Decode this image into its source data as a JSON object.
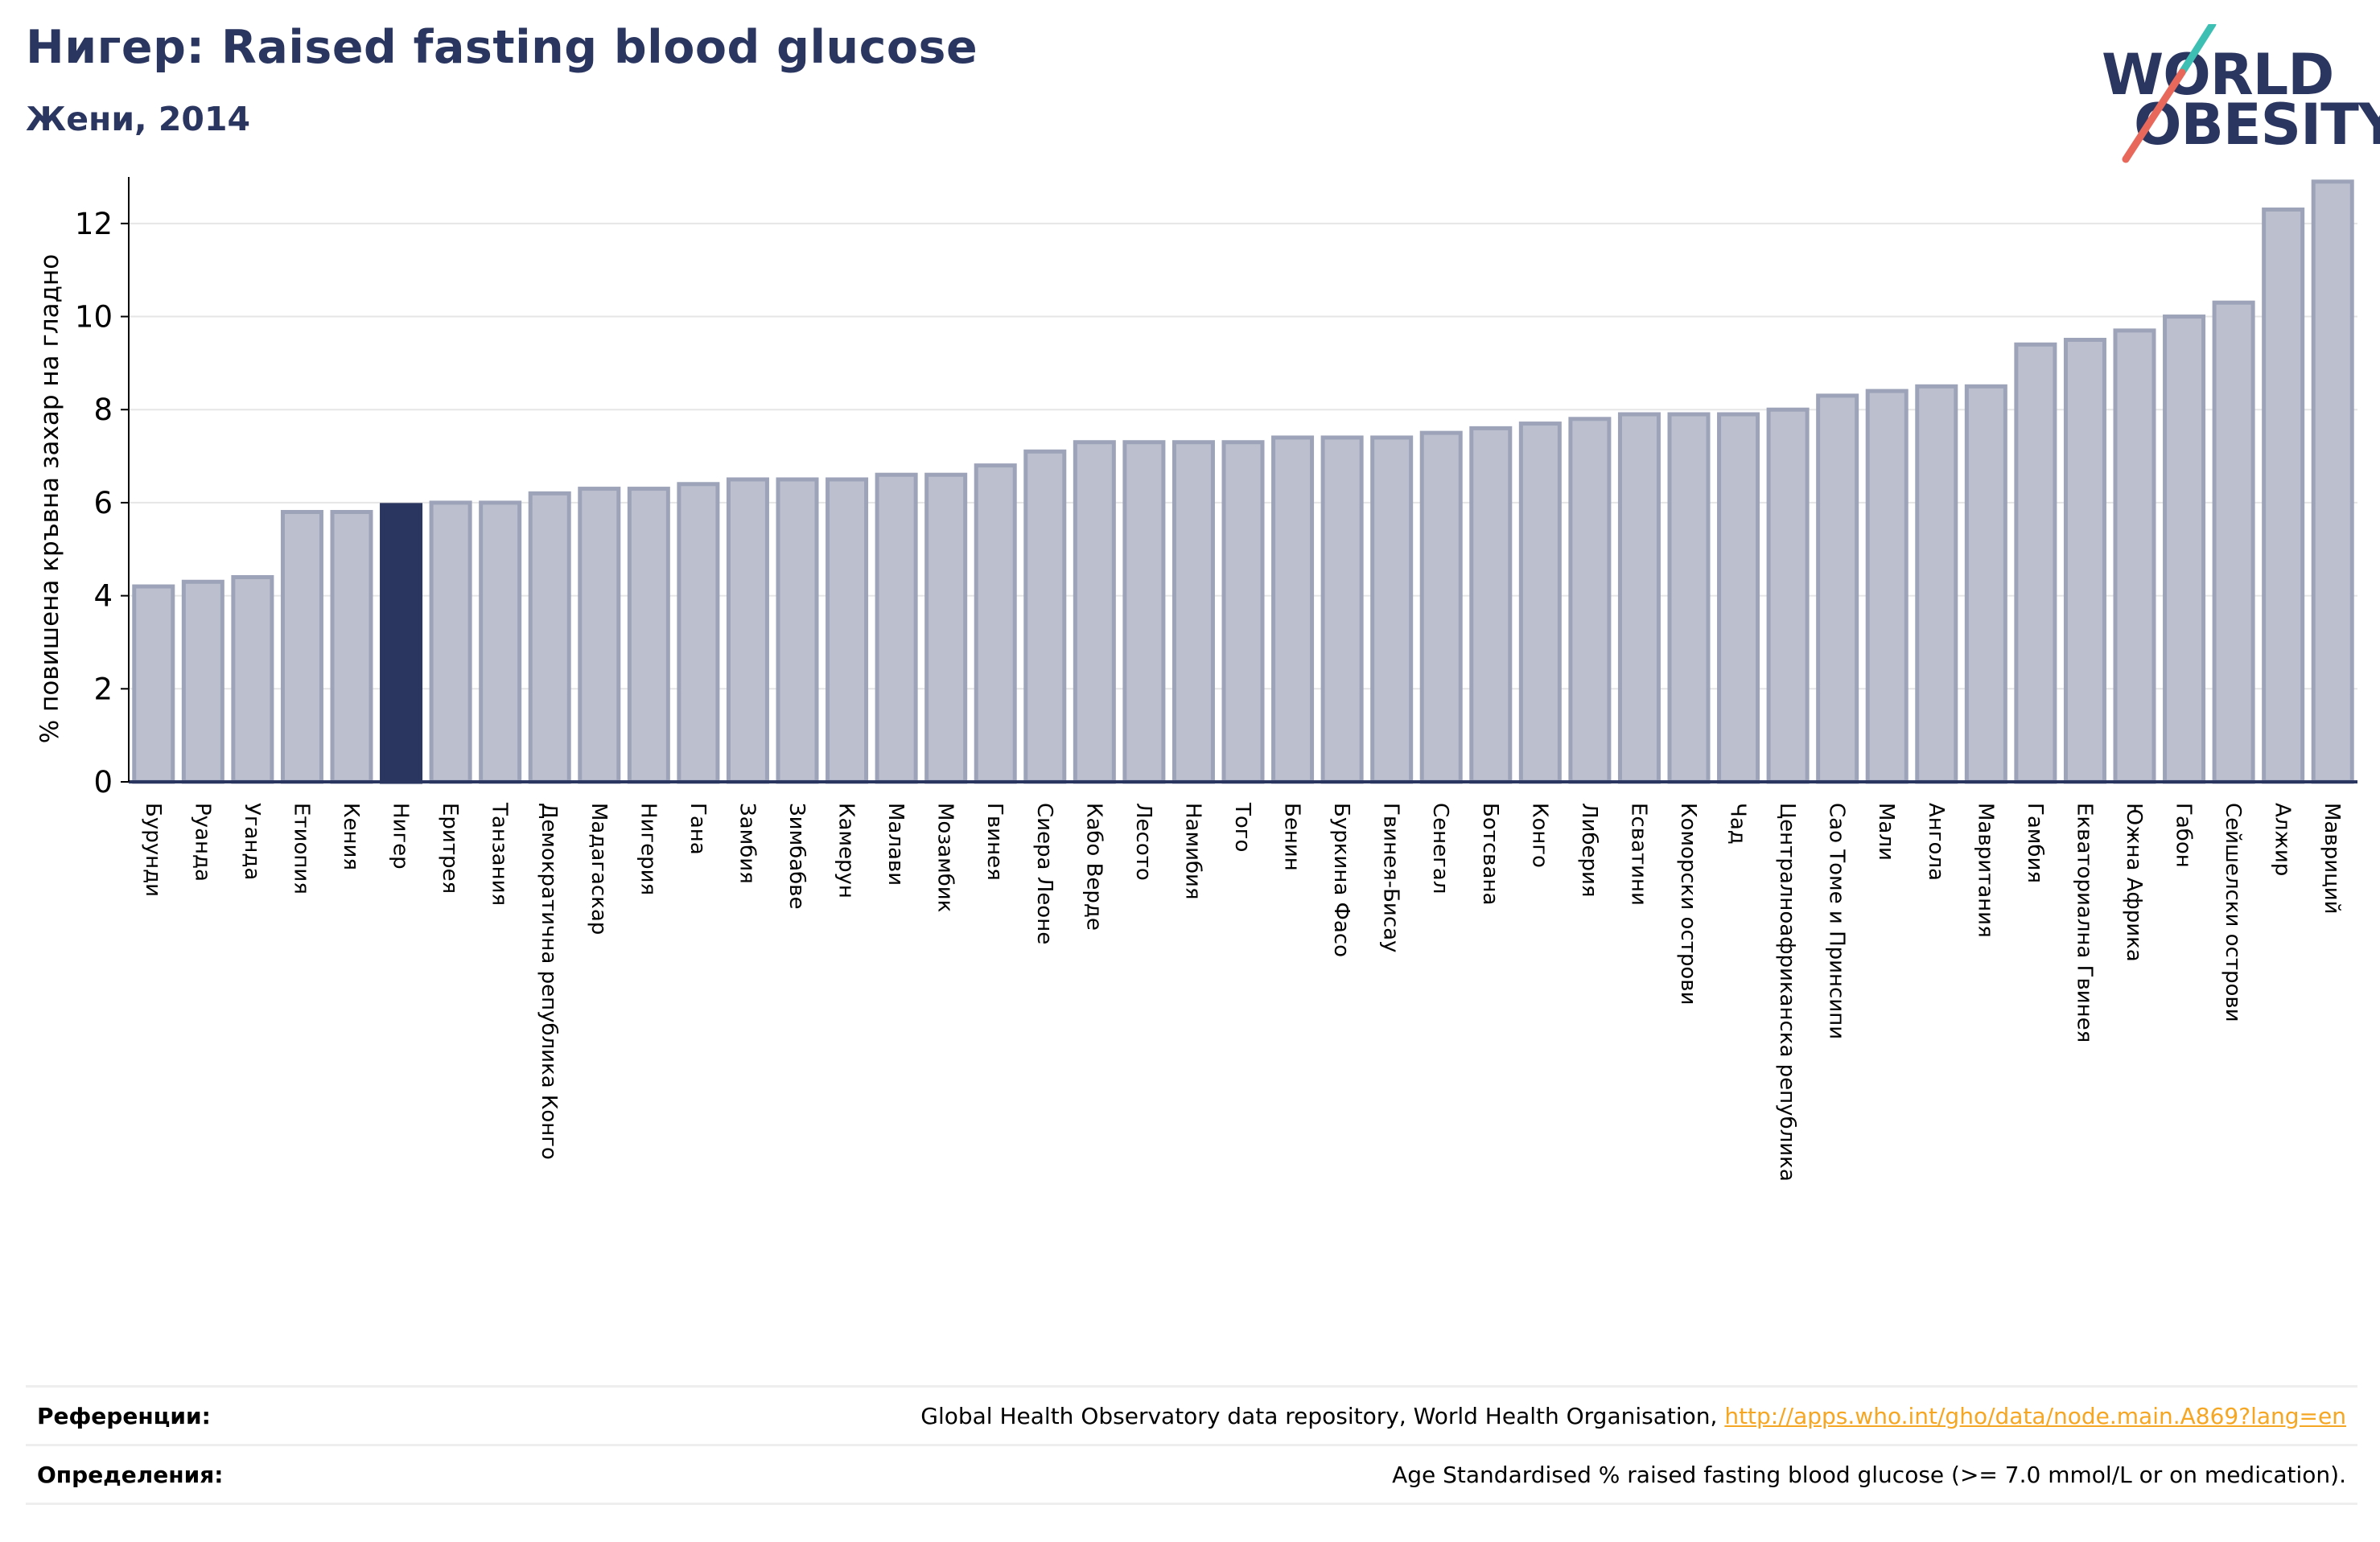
{
  "header": {
    "title": "Нигер: Raised fasting blood glucose",
    "subtitle": "Жени, 2014"
  },
  "logo": {
    "line1": "WORLD",
    "line2": "OBESITY"
  },
  "colors": {
    "bar": "#bcc0ce",
    "bar_border": "#9da3b8",
    "highlight": "#2a3560",
    "grid": "#e6e6e6",
    "title": "#2a3560",
    "logo_teal": "#3dbfb4",
    "logo_coral": "#e8695b",
    "link": "#f5a623"
  },
  "chart_data": {
    "type": "bar",
    "title": "",
    "xlabel": "",
    "ylabel": "% повишена кръвна захар на гладно",
    "ylim": [
      0,
      13
    ],
    "yticks": [
      0,
      2,
      4,
      6,
      8,
      10,
      12
    ],
    "grid": true,
    "highlight": "Нигер",
    "categories": [
      "Бурунди",
      "Руанда",
      "Уганда",
      "Етиопия",
      "Кения",
      "Нигер",
      "Еритрея",
      "Танзания",
      "Демократична република Конго",
      "Мадагаскар",
      "Нигерия",
      "Гана",
      "Замбия",
      "Зимбабве",
      "Камерун",
      "Малави",
      "Мозамбик",
      "Гвинея",
      "Сиера Леоне",
      "Кабо Верде",
      "Лесото",
      "Намибия",
      "Того",
      "Бенин",
      "Буркина Фасо",
      "Гвинея-Бисау",
      "Сенегал",
      "Ботсвана",
      "Конго",
      "Либерия",
      "Есватини",
      "Коморски острови",
      "Чад",
      "Централноафриканска република",
      "Сао Томе и Принсипи",
      "Мали",
      "Ангола",
      "Мавритания",
      "Гамбия",
      "Екваториална Гвинея",
      "Южна Африка",
      "Габон",
      "Сейшелски острови",
      "Алжир",
      "Мавриций"
    ],
    "values": [
      4.2,
      4.3,
      4.4,
      5.8,
      5.8,
      5.95,
      6.0,
      6.0,
      6.2,
      6.3,
      6.3,
      6.4,
      6.5,
      6.5,
      6.5,
      6.6,
      6.6,
      6.8,
      7.1,
      7.3,
      7.3,
      7.3,
      7.3,
      7.4,
      7.4,
      7.4,
      7.5,
      7.6,
      7.7,
      7.8,
      7.9,
      7.9,
      7.9,
      8.0,
      8.3,
      8.4,
      8.5,
      8.5,
      9.4,
      9.5,
      9.7,
      10.0,
      10.3,
      12.3,
      12.9
    ]
  },
  "footer": {
    "references_label": "Референции:",
    "references_text": "Global Health Observatory data repository, World Health Organisation, ",
    "references_link": "http://apps.who.int/gho/data/node.main.A869?lang=en",
    "definitions_label": "Определения:",
    "definitions_text": "Age Standardised % raised fasting blood glucose (>= 7.0 mmol/L or on medication)."
  }
}
